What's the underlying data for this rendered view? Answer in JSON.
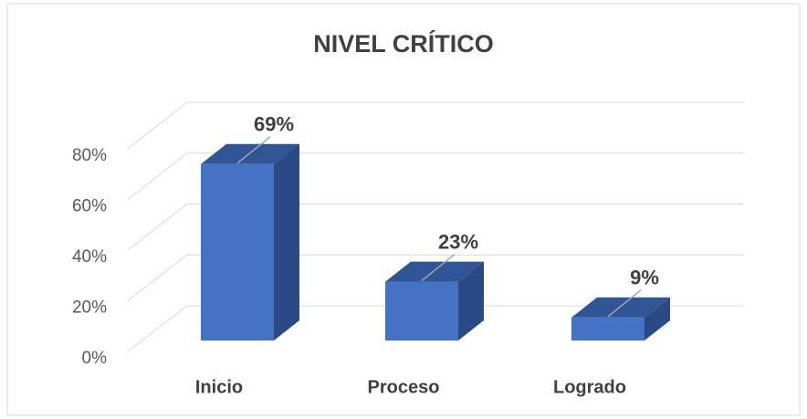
{
  "chart_data": {
    "type": "bar3d",
    "title": "NIVEL CRÍTICO",
    "categories": [
      "Inicio",
      "Proceso",
      "Logrado"
    ],
    "values": [
      69,
      23,
      9
    ],
    "value_labels": [
      "69%",
      "23%",
      "9%"
    ],
    "color": "#4472c4",
    "ylim": [
      0,
      80
    ],
    "yticks": [
      {
        "value": 0,
        "label": "0%"
      },
      {
        "value": 20,
        "label": "20%"
      },
      {
        "value": 40,
        "label": "40%"
      },
      {
        "value": 60,
        "label": "60%"
      },
      {
        "value": 80,
        "label": "80%"
      }
    ],
    "grid": true
  }
}
